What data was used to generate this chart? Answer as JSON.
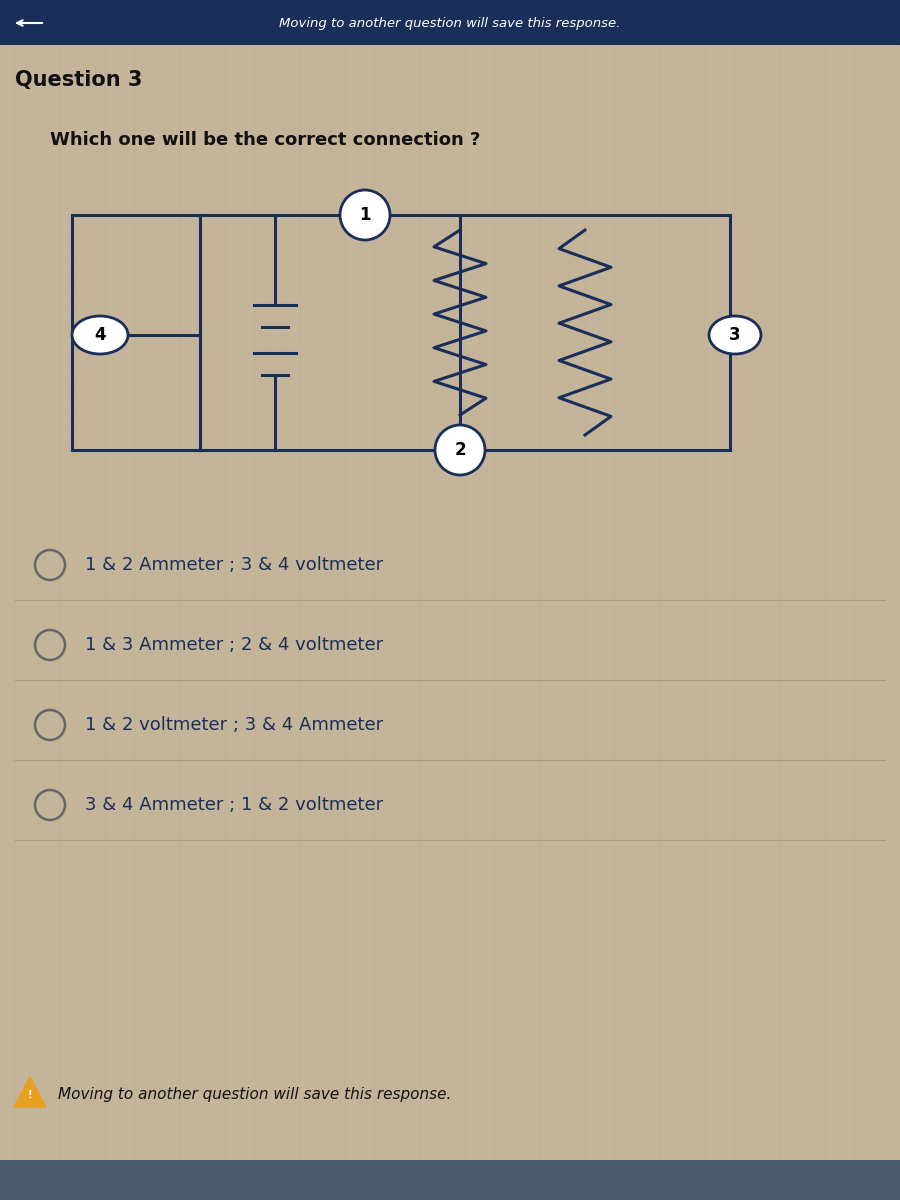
{
  "question_label": "Question 3",
  "question_text": "Which one will be the correct connection ?",
  "options": [
    "1 & 2 Ammeter ; 3 & 4 voltmeter",
    "1 & 3 Ammeter ; 2 & 4 voltmeter",
    "1 & 2 voltmeter ; 3 & 4 Ammeter",
    "3 & 4 Ammeter ; 1 & 2 voltmeter"
  ],
  "footer_text": "Moving to another question will save this response.",
  "header_text": "Moving to another question will save this response.",
  "bg_color": "#c4b49a",
  "circuit_color": "#1a2e5a",
  "text_color": "#111111",
  "option_text_color": "#1a2e5a",
  "grid_color_h": "#d4c8b0",
  "grid_color_v": "#b8a888",
  "radio_color": "#888888"
}
